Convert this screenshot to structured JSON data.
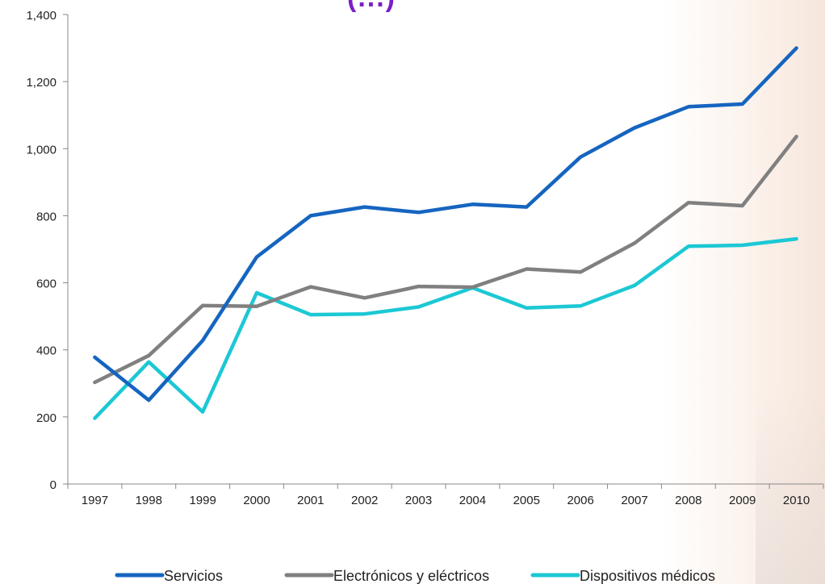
{
  "chart_data": {
    "type": "line",
    "title": "",
    "xlabel": "",
    "ylabel": "",
    "x": [
      "1997",
      "1998",
      "1999",
      "2000",
      "2001",
      "2002",
      "2003",
      "2004",
      "2005",
      "2006",
      "2007",
      "2008",
      "2009",
      "2010"
    ],
    "ylim": [
      0,
      1400
    ],
    "yticks": [
      "0",
      "200",
      "400",
      "600",
      "800",
      "1,000",
      "1,200",
      "1,400"
    ],
    "ytick_values": [
      0,
      200,
      400,
      600,
      800,
      1000,
      1200,
      1400
    ],
    "grid": false,
    "legend_position": "bottom",
    "series": [
      {
        "name": "Servicios",
        "color": "#1565C0",
        "values": [
          378,
          250,
          428,
          677,
          800,
          826,
          810,
          834,
          826,
          975,
          1062,
          1125,
          1133,
          1300
        ]
      },
      {
        "name": "Electrónicos y eléctricos",
        "color": "#808080",
        "values": [
          303,
          383,
          532,
          530,
          588,
          555,
          589,
          587,
          641,
          632,
          718,
          839,
          830,
          1036
        ]
      },
      {
        "name": "Dispositivos médicos",
        "color": "#1CC8D4",
        "values": [
          196,
          364,
          215,
          570,
          505,
          507,
          528,
          585,
          525,
          531,
          592,
          709,
          712,
          731
        ]
      }
    ]
  },
  "cut_title": "(...)"
}
